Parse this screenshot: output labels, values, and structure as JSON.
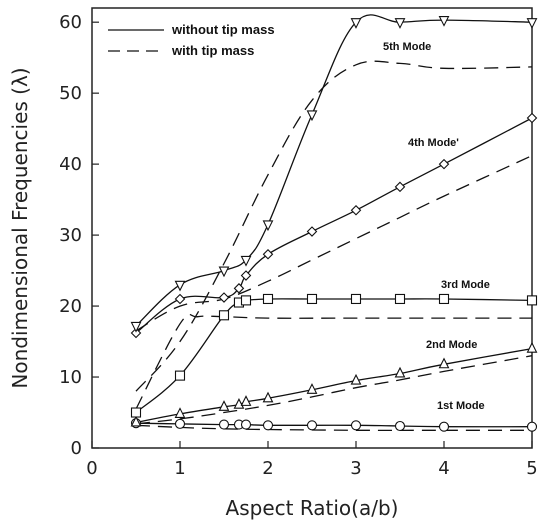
{
  "chart_data": {
    "type": "line",
    "title": "",
    "xlabel": "Aspect Ratio(a/b)",
    "ylabel": "Nondimensional Frequencies (λ)",
    "xlim": [
      0,
      5
    ],
    "ylim": [
      0,
      62
    ],
    "xticks": [
      0,
      1,
      2,
      3,
      4,
      5
    ],
    "yticks": [
      0,
      10,
      20,
      30,
      40,
      50,
      60
    ],
    "grid": false,
    "legend": {
      "position": "top-left",
      "entries": [
        {
          "label": "without tip mass",
          "style": "solid"
        },
        {
          "label": "with tip mass",
          "style": "dashed"
        }
      ]
    },
    "annotations": [
      "5th Mode",
      "4th Mode'",
      "3rd Mode",
      "2nd Mode",
      "1st Mode"
    ],
    "series": [
      {
        "mode": "1st Mode",
        "style": "solid",
        "marker": "circle",
        "x": [
          0.5,
          1.0,
          1.5,
          1.67,
          1.75,
          2.0,
          2.5,
          3.0,
          3.5,
          4.0,
          5.0
        ],
        "y": [
          3.5,
          3.4,
          3.3,
          3.3,
          3.3,
          3.2,
          3.2,
          3.2,
          3.1,
          3.0,
          3.0
        ]
      },
      {
        "mode": "1st Mode",
        "style": "dashed",
        "marker": "none",
        "x": [
          0.5,
          1.0,
          1.5,
          2.0,
          3.0,
          4.0,
          5.0
        ],
        "y": [
          3.2,
          2.9,
          2.7,
          2.6,
          2.5,
          2.5,
          2.5
        ]
      },
      {
        "mode": "2nd Mode",
        "style": "solid",
        "marker": "triangle-up",
        "x": [
          0.5,
          1.0,
          1.5,
          1.67,
          1.75,
          2.0,
          2.5,
          3.0,
          3.5,
          4.0,
          5.0
        ],
        "y": [
          3.6,
          4.8,
          5.8,
          6.1,
          6.5,
          7.0,
          8.2,
          9.5,
          10.5,
          11.8,
          14.0
        ]
      },
      {
        "mode": "2nd Mode",
        "style": "dashed",
        "marker": "none",
        "x": [
          0.5,
          1.0,
          1.5,
          2.0,
          2.5,
          3.0,
          3.5,
          4.0,
          5.0
        ],
        "y": [
          3.4,
          4.1,
          5.0,
          6.0,
          7.2,
          8.5,
          9.6,
          10.8,
          13.0
        ]
      },
      {
        "mode": "3rd Mode",
        "style": "solid",
        "marker": "square",
        "x": [
          0.5,
          1.0,
          1.5,
          1.67,
          1.75,
          2.0,
          2.5,
          3.0,
          3.5,
          4.0,
          5.0
        ],
        "y": [
          5.0,
          10.2,
          18.7,
          20.5,
          20.8,
          21.0,
          21.0,
          21.0,
          21.0,
          21.0,
          20.8
        ]
      },
      {
        "mode": "3rd Mode",
        "style": "dashed",
        "marker": "none",
        "x": [
          0.5,
          1.0,
          1.2,
          1.5,
          2.0,
          3.0,
          4.0,
          5.0
        ],
        "y": [
          5.5,
          17.5,
          18.5,
          18.5,
          18.3,
          18.3,
          18.3,
          18.3
        ]
      },
      {
        "mode": "4th Mode",
        "style": "solid",
        "marker": "diamond",
        "x": [
          0.5,
          1.0,
          1.5,
          1.67,
          1.75,
          2.0,
          2.5,
          3.0,
          3.5,
          4.0,
          5.0
        ],
        "y": [
          16.2,
          21.0,
          21.2,
          22.5,
          24.3,
          27.3,
          30.5,
          33.5,
          36.8,
          40.0,
          46.5
        ]
      },
      {
        "mode": "4th Mode",
        "style": "dashed",
        "marker": "none",
        "x": [
          0.5,
          1.0,
          1.5,
          2.0,
          2.5,
          3.0,
          3.5,
          4.0,
          5.0
        ],
        "y": [
          16.5,
          20.0,
          21.0,
          23.5,
          26.5,
          29.5,
          32.5,
          35.5,
          41.2
        ]
      },
      {
        "mode": "5th Mode",
        "style": "solid",
        "marker": "triangle-down",
        "x": [
          0.5,
          1.0,
          1.5,
          1.75,
          2.0,
          2.5,
          3.0,
          3.5,
          4.0,
          5.0
        ],
        "y": [
          17.2,
          23.0,
          25.0,
          26.5,
          31.5,
          47.0,
          60.0,
          60.0,
          60.3,
          60.0
        ]
      },
      {
        "mode": "5th Mode",
        "style": "dashed",
        "marker": "none",
        "x": [
          0.5,
          1.0,
          1.5,
          2.0,
          2.5,
          3.0,
          3.5,
          4.0,
          5.0
        ],
        "y": [
          8.0,
          15.0,
          26.0,
          38.5,
          49.0,
          54.0,
          54.2,
          53.5,
          53.7
        ]
      }
    ]
  }
}
